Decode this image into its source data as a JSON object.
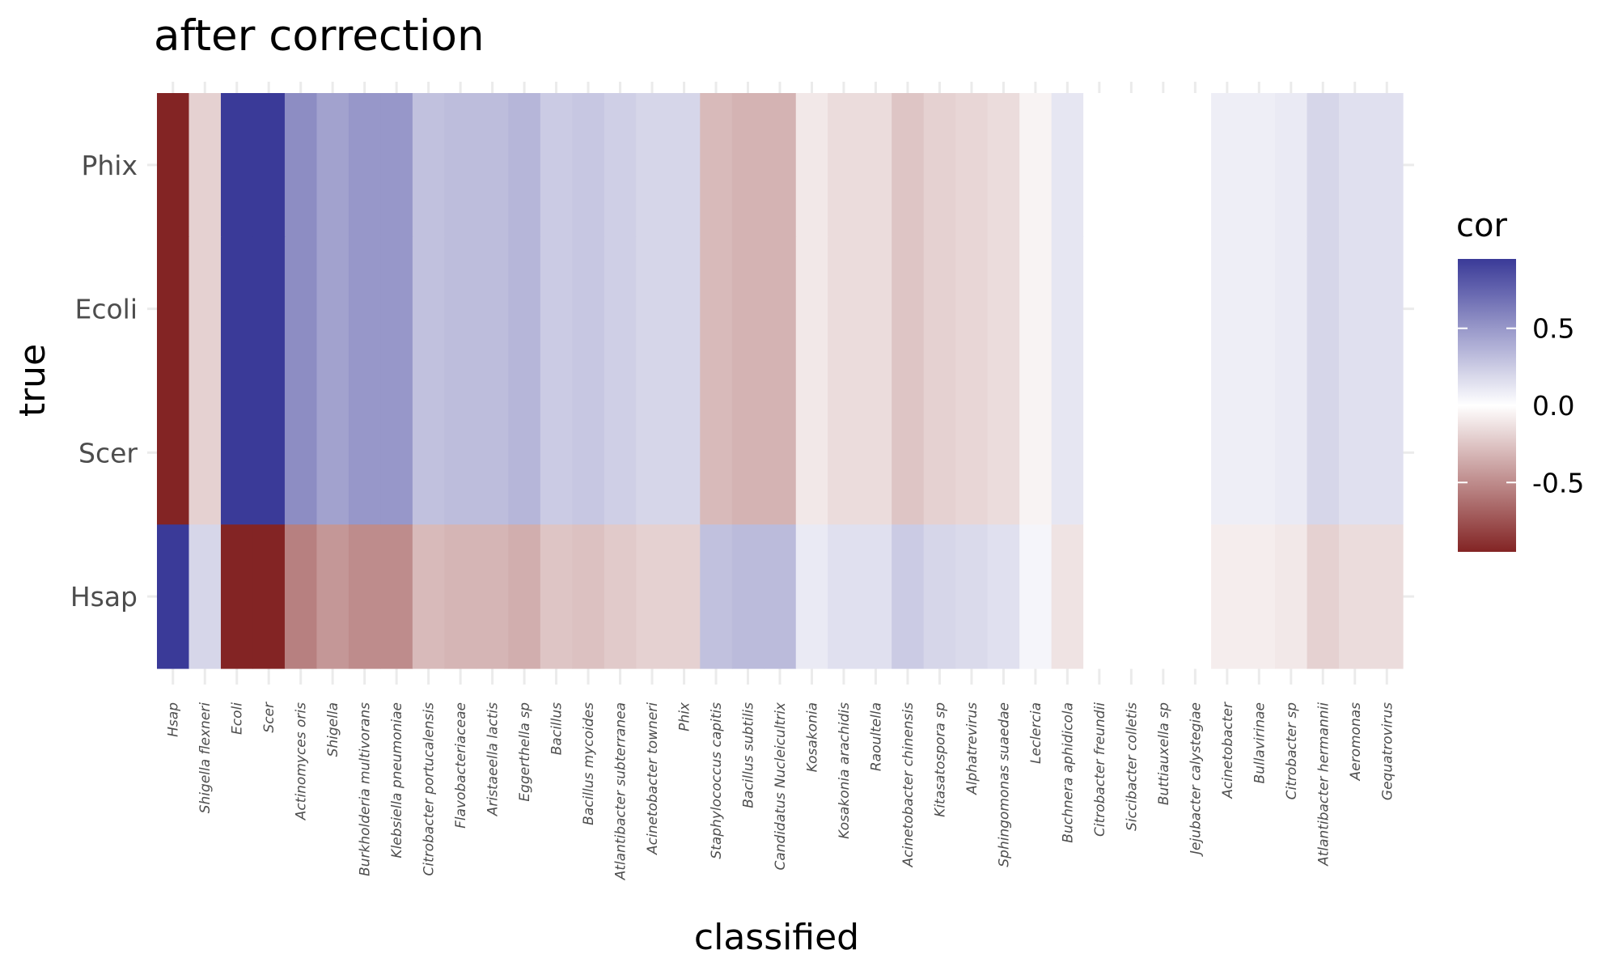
{
  "chart_data": {
    "type": "heatmap",
    "title": "after correction",
    "xlabel": "classified",
    "ylabel": "true",
    "y_categories": [
      "Phix",
      "Ecoli",
      "Scer",
      "Hsap"
    ],
    "x_categories": [
      "Hsap",
      "Shigella flexneri",
      "Ecoli",
      "Scer",
      "Actinomyces oris",
      "Shigella",
      "Burkholderia multivorans",
      "Klebsiella pneumoniae",
      "Citrobacter portucalensis",
      "Flavobacteriaceae",
      "Aristaeella lactis",
      "Eggerthella sp",
      "Bacillus",
      "Bacillus mycoides",
      "Atlantibacter subterranea",
      "Acinetobacter towneri",
      "Phix",
      "Staphylococcus capitis",
      "Bacillus subtilis",
      "Candidatus Nucleicultrix",
      "Kosakonia",
      "Kosakonia arachidis",
      "Raoultella",
      "Acinetobacter chinensis",
      "Kitasatospora sp",
      "Alphatrevirus",
      "Sphingomonas suaedae",
      "Leclercia",
      "Buchnera aphidicola",
      "Citrobacter freundii",
      "Siccibacter colletis",
      "Buttiauxella sp",
      "Jejubacter calystegiae",
      "Acinetobacter",
      "Bullavirinae",
      "Citrobacter sp",
      "Atlantibacter hermannii",
      "Aeromonas",
      "Gequatrovirus"
    ],
    "values_top_rows": [
      -0.95,
      -0.2,
      0.95,
      0.95,
      0.55,
      0.45,
      0.5,
      0.5,
      0.3,
      0.32,
      0.32,
      0.35,
      0.25,
      0.27,
      0.23,
      0.2,
      0.2,
      -0.3,
      -0.33,
      -0.33,
      -0.1,
      -0.15,
      -0.15,
      -0.25,
      -0.2,
      -0.18,
      -0.15,
      -0.05,
      0.12,
      0.0,
      0.0,
      0.0,
      0.0,
      0.08,
      0.08,
      0.1,
      0.2,
      0.15,
      0.15
    ],
    "values_hsap": [
      0.95,
      0.2,
      -0.95,
      -0.95,
      -0.55,
      -0.45,
      -0.5,
      -0.5,
      -0.3,
      -0.32,
      -0.32,
      -0.35,
      -0.25,
      -0.27,
      -0.23,
      -0.2,
      -0.2,
      0.3,
      0.33,
      0.33,
      0.1,
      0.15,
      0.15,
      0.25,
      0.2,
      0.18,
      0.15,
      0.05,
      -0.12,
      0.0,
      0.0,
      0.0,
      0.0,
      -0.08,
      -0.08,
      -0.1,
      -0.2,
      -0.15,
      -0.15
    ],
    "color_scale": {
      "name": "cor",
      "low": "#832424",
      "mid": "#ffffff",
      "high": "#3a3a98",
      "limits": [
        -0.95,
        0.95
      ],
      "ticks": [
        0.5,
        0.0,
        -0.5
      ],
      "tick_labels": [
        "0.5",
        "0.0",
        "-0.5"
      ]
    },
    "legend_position": "right"
  }
}
